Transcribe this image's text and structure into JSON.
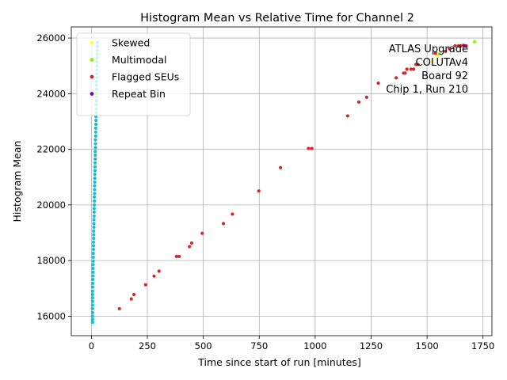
{
  "chart_data": {
    "type": "scatter",
    "title": "Histogram Mean vs Relative Time for Channel 2",
    "xlabel": "Time since start of run [minutes]",
    "ylabel": "Histogram Mean",
    "xlim": [
      -90,
      1790
    ],
    "ylim": [
      15300,
      26400
    ],
    "xticks": [
      0,
      250,
      500,
      750,
      1000,
      1250,
      1500,
      1750
    ],
    "yticks": [
      16000,
      18000,
      20000,
      22000,
      24000,
      26000
    ],
    "grid": true,
    "legend": "top-left",
    "annotation": [
      "ATLAS Upgrade",
      "COLUTAv4",
      "Board 92",
      "Chip 1, Run 210"
    ],
    "series": [
      {
        "name": "",
        "color": "#17becf",
        "points": [
          [
            5,
            15780
          ],
          [
            5,
            15880
          ],
          [
            5,
            16000
          ],
          [
            5,
            16130
          ],
          [
            5,
            16270
          ],
          [
            5,
            16400
          ],
          [
            5,
            16530
          ],
          [
            5,
            16660
          ],
          [
            5,
            16780
          ],
          [
            5,
            16900
          ],
          [
            6,
            17050
          ],
          [
            6,
            17180
          ],
          [
            6,
            17320
          ],
          [
            7,
            17450
          ],
          [
            7,
            17580
          ],
          [
            7,
            17720
          ],
          [
            7,
            17850
          ],
          [
            8,
            17980
          ],
          [
            8,
            18120
          ],
          [
            8,
            18260
          ],
          [
            9,
            18400
          ],
          [
            9,
            18530
          ],
          [
            9,
            18660
          ],
          [
            10,
            18800
          ],
          [
            10,
            18930
          ],
          [
            10,
            19060
          ],
          [
            11,
            19200
          ],
          [
            11,
            19330
          ],
          [
            11,
            19470
          ],
          [
            12,
            19600
          ],
          [
            12,
            19740
          ],
          [
            12,
            19870
          ],
          [
            13,
            20000
          ],
          [
            13,
            20140
          ],
          [
            13,
            20280
          ],
          [
            14,
            20410
          ],
          [
            14,
            20550
          ],
          [
            14,
            20690
          ],
          [
            15,
            20820
          ],
          [
            15,
            20960
          ],
          [
            15,
            21100
          ],
          [
            16,
            21230
          ],
          [
            16,
            21370
          ],
          [
            16,
            21510
          ],
          [
            17,
            21650
          ],
          [
            17,
            21790
          ],
          [
            17,
            21920
          ],
          [
            18,
            22060
          ],
          [
            18,
            22200
          ],
          [
            18,
            22340
          ],
          [
            19,
            22480
          ],
          [
            19,
            22620
          ],
          [
            19,
            22760
          ],
          [
            20,
            22900
          ],
          [
            20,
            23040
          ],
          [
            20,
            23180
          ],
          [
            21,
            23320
          ],
          [
            21,
            23460
          ],
          [
            21,
            23600
          ],
          [
            22,
            23740
          ],
          [
            22,
            23880
          ],
          [
            22,
            24020
          ],
          [
            23,
            24160
          ],
          [
            23,
            24300
          ],
          [
            23,
            24440
          ],
          [
            24,
            24580
          ],
          [
            24,
            24720
          ],
          [
            24,
            24860
          ],
          [
            25,
            25000
          ],
          [
            25,
            25140
          ],
          [
            25,
            25280
          ],
          [
            26,
            25420
          ],
          [
            26,
            25560
          ],
          [
            26,
            25700
          ],
          [
            27,
            25840
          ]
        ]
      },
      {
        "name": "Skewed",
        "color": "#ffff33",
        "points": [
          [
            1520,
            25150
          ],
          [
            1545,
            25350
          ]
        ]
      },
      {
        "name": "Multimodal",
        "color": "#7fff00",
        "points": [
          [
            1555,
            25430
          ],
          [
            1660,
            25720
          ],
          [
            1712,
            25870
          ]
        ]
      },
      {
        "name": "Flagged SEUs",
        "color": "#d62728",
        "points": [
          [
            125,
            16270
          ],
          [
            178,
            16620
          ],
          [
            190,
            16780
          ],
          [
            242,
            17130
          ],
          [
            280,
            17440
          ],
          [
            302,
            17620
          ],
          [
            380,
            18150
          ],
          [
            392,
            18150
          ],
          [
            438,
            18500
          ],
          [
            448,
            18630
          ],
          [
            495,
            18980
          ],
          [
            590,
            19330
          ],
          [
            630,
            19670
          ],
          [
            748,
            20500
          ],
          [
            845,
            21340
          ],
          [
            970,
            22030
          ],
          [
            985,
            22030
          ],
          [
            1145,
            23200
          ],
          [
            1195,
            23700
          ],
          [
            1230,
            23870
          ],
          [
            1282,
            24380
          ],
          [
            1362,
            24570
          ],
          [
            1395,
            24740
          ],
          [
            1402,
            24740
          ],
          [
            1410,
            24880
          ],
          [
            1428,
            24880
          ],
          [
            1440,
            24880
          ],
          [
            1450,
            25050
          ],
          [
            1460,
            25050
          ],
          [
            1538,
            25450
          ],
          [
            1582,
            25520
          ],
          [
            1600,
            25620
          ],
          [
            1625,
            25720
          ],
          [
            1640,
            25720
          ],
          [
            1650,
            25720
          ],
          [
            1662,
            25740
          ],
          [
            1675,
            25720
          ]
        ]
      },
      {
        "name": "Repeat Bin",
        "color": "#6a0dad",
        "points": [
          [
            1668,
            25720
          ]
        ]
      }
    ]
  }
}
